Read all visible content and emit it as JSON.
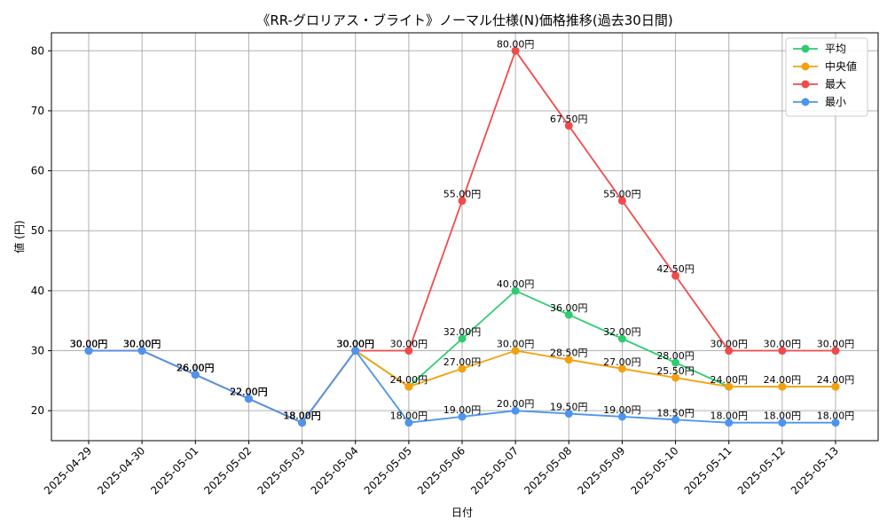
{
  "chart_data": {
    "type": "line",
    "title": "《RR-グロリアス・ブライト》ノーマル仕様(N)価格推移(過去30日間)",
    "xlabel": "日付",
    "ylabel": "値 (円)",
    "ylim": [
      15,
      83
    ],
    "yticks": [
      20,
      30,
      40,
      50,
      60,
      70,
      80
    ],
    "grid": true,
    "legend_position": "top-right",
    "categories": [
      "2025-04-29",
      "2025-04-30",
      "2025-05-01",
      "2025-05-02",
      "2025-05-03",
      "2025-05-04",
      "2025-05-05",
      "2025-05-06",
      "2025-05-07",
      "2025-05-08",
      "2025-05-09",
      "2025-05-10",
      "2025-05-11",
      "2025-05-12",
      "2025-05-13"
    ],
    "series": [
      {
        "name": "平均",
        "color": "#2ecc71",
        "values": [
          30,
          30,
          26,
          22,
          18,
          30,
          24,
          32,
          40,
          36,
          32,
          28,
          24,
          24,
          24
        ],
        "labels": [
          "30.00円",
          "30.00円",
          "26.00円",
          "22.00円",
          "18.00円",
          "30.00円",
          "",
          "32.00円",
          "40.00円",
          "36.00円",
          "32.00円",
          "28.00円",
          "",
          "",
          ""
        ]
      },
      {
        "name": "中央値",
        "color": "#f5a00b",
        "values": [
          30,
          30,
          26,
          22,
          18,
          30,
          24,
          27,
          30,
          28.5,
          27,
          25.5,
          24,
          24,
          24
        ],
        "labels": [
          "30.00円",
          "30.00円",
          "26.00円",
          "22.00円",
          "18.00円",
          "30.00円",
          "24.00円",
          "27.00円",
          "30.00円",
          "28.50円",
          "27.00円",
          "25.50円",
          "24.00円",
          "24.00円",
          "24.00円"
        ]
      },
      {
        "name": "最大",
        "color": "#f24a4a",
        "values": [
          30,
          30,
          26,
          22,
          18,
          30,
          30,
          55,
          80,
          67.5,
          55,
          42.5,
          30,
          30,
          30
        ],
        "labels": [
          "30.00円",
          "30.00円",
          "26.00円",
          "22.00円",
          "18.00円",
          "30.00円",
          "30.00円",
          "55.00円",
          "80.00円",
          "67.50円",
          "55.00円",
          "42.50円",
          "30.00円",
          "30.00円",
          "30.00円"
        ]
      },
      {
        "name": "最小",
        "color": "#4d94f0",
        "values": [
          30,
          30,
          26,
          22,
          18,
          30,
          18,
          19,
          20,
          19.5,
          19,
          18.5,
          18,
          18,
          18
        ],
        "labels": [
          "30.00円",
          "30.00円",
          "26.00円",
          "22.00円",
          "18.00円",
          "30.00円",
          "18.00円",
          "19.00円",
          "20.00円",
          "19.50円",
          "19.00円",
          "18.50円",
          "18.00円",
          "18.00円",
          "18.00円"
        ]
      }
    ]
  }
}
